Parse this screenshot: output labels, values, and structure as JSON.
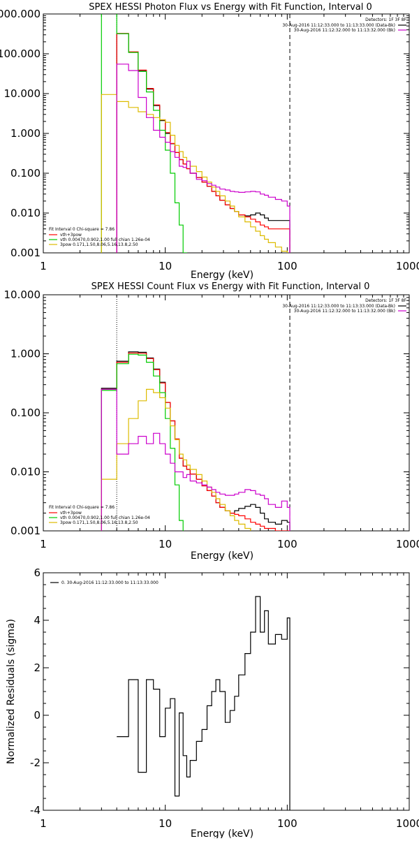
{
  "chart_data": [
    {
      "type": "line",
      "title": "SPEX HESSI Photon Flux vs Energy with Fit Function, Interval 0",
      "xlabel": "Energy (keV)",
      "ylabel": "",
      "xscale": "log",
      "yscale": "log",
      "xlim": [
        1,
        1000
      ],
      "ylim": [
        0.001,
        1000
      ],
      "xtick_labels": [
        "1",
        "10",
        "100",
        "1000"
      ],
      "ytick_values": [
        0.001,
        0.01,
        0.1,
        1,
        10,
        100,
        1000
      ],
      "ytick_labels": [
        "0.001",
        "0.010",
        "0.100",
        "1.000",
        "10.000",
        "100.000",
        "1000.000"
      ],
      "vlines": [
        {
          "x": 4.0,
          "style": "dotted",
          "color": "#000000"
        },
        {
          "x": 105,
          "style": "dashed",
          "color": "#000000"
        }
      ],
      "legend_right": {
        "header": "Detectors: 1F 3F 8F",
        "entries": [
          {
            "text": "30-Aug-2016 11:12:33.000 to 11:13:33.000 (Data-Bk)",
            "color": "#000000"
          },
          {
            "text": "30-Aug-2016 11:12:32.000 to 11:13:32.000 (Bk)",
            "color": "#cc00cc"
          }
        ]
      },
      "legend_left": {
        "header": "Fit Interval 0   Chi-square = 7.86",
        "entries": [
          {
            "text": "vth+3pow",
            "color": "#ff0000"
          },
          {
            "text": "vth 0.00470,0.902,1.00  full chian 1.26e-04",
            "color": "#00cc00"
          },
          {
            "text": "3pow 0.171,1.50,8.06,5.16,13.8,2.50",
            "color": "#ddbb00"
          }
        ]
      },
      "bin_edges": [
        3,
        4,
        5,
        6,
        7,
        8,
        9,
        10,
        11,
        12,
        13,
        14,
        15,
        16,
        18,
        20,
        22,
        24,
        26,
        28,
        31,
        34,
        37,
        40,
        45,
        50,
        55,
        60,
        65,
        70,
        80,
        90,
        100,
        105
      ],
      "series": [
        {
          "color": "#000000",
          "values": [
            null,
            320,
            110,
            38,
            13,
            5.0,
            2.1,
            1.0,
            0.55,
            0.33,
            0.22,
            0.17,
            0.13,
            0.1,
            0.078,
            0.06,
            0.047,
            0.035,
            0.027,
            0.021,
            0.016,
            0.013,
            0.011,
            0.009,
            0.0085,
            0.009,
            0.01,
            0.009,
            0.0075,
            0.0065,
            0.0065,
            0.0065,
            0.0065
          ]
        },
        {
          "color": "#ff0000",
          "values": [
            null,
            325,
            112,
            39,
            13.5,
            5.2,
            2.2,
            1.05,
            0.56,
            0.33,
            0.22,
            0.17,
            0.13,
            0.1,
            0.078,
            0.06,
            0.047,
            0.035,
            0.027,
            0.021,
            0.016,
            0.013,
            0.011,
            0.009,
            0.008,
            0.007,
            0.006,
            0.005,
            0.0045,
            0.004,
            0.004,
            0.004,
            0.004
          ]
        },
        {
          "color": "#00cc00",
          "values": [
            1000000.0,
            320,
            108,
            36,
            11,
            3.8,
            1.2,
            0.38,
            0.1,
            0.018,
            0.005,
            0.001,
            0.0005,
            null,
            null,
            null,
            null,
            null,
            null,
            null,
            null,
            null,
            null,
            null,
            null,
            null,
            null,
            null,
            null,
            null,
            null,
            null,
            null
          ]
        },
        {
          "color": "#ddbb00",
          "values": [
            9.5,
            6.3,
            4.5,
            3.5,
            3.0,
            2.5,
            2.2,
            1.9,
            0.9,
            0.5,
            0.35,
            0.25,
            0.2,
            0.15,
            0.11,
            0.08,
            0.06,
            0.045,
            0.035,
            0.027,
            0.02,
            0.015,
            0.011,
            0.008,
            0.006,
            0.0045,
            0.0035,
            0.0027,
            0.0022,
            0.0018,
            0.0014,
            0.0011,
            0.0009
          ]
        },
        {
          "color": "#cc00cc",
          "values": [
            null,
            55,
            38,
            8,
            2.5,
            1.2,
            0.8,
            0.6,
            0.35,
            0.25,
            0.15,
            0.14,
            0.2,
            0.1,
            0.07,
            0.065,
            0.055,
            0.05,
            0.045,
            0.04,
            0.038,
            0.035,
            0.034,
            0.033,
            0.034,
            0.035,
            0.034,
            0.03,
            0.028,
            0.025,
            0.022,
            0.02,
            0.015
          ]
        }
      ]
    },
    {
      "type": "line",
      "title": "SPEX HESSI Count Flux vs Energy with Fit Function, Interval 0",
      "xlabel": "Energy (keV)",
      "ylabel": "",
      "xscale": "log",
      "yscale": "log",
      "xlim": [
        1,
        1000
      ],
      "ylim": [
        0.001,
        10
      ],
      "xtick_labels": [
        "1",
        "10",
        "100",
        "1000"
      ],
      "ytick_values": [
        0.001,
        0.01,
        0.1,
        1,
        10
      ],
      "ytick_labels": [
        "0.001",
        "0.010",
        "0.100",
        "1.000",
        "10.000"
      ],
      "vlines": [
        {
          "x": 4.0,
          "style": "dotted",
          "color": "#000000"
        },
        {
          "x": 105,
          "style": "dashed",
          "color": "#000000"
        }
      ],
      "legend_right": {
        "header": "Detectors: 1F 3F 8F",
        "entries": [
          {
            "text": "30-Aug-2016 11:12:33.000 to 11:13:33.000 (Data-Bk)",
            "color": "#000000"
          },
          {
            "text": "30-Aug-2016 11:12:32.000 to 11:13:32.000 (Bk)",
            "color": "#cc00cc"
          }
        ]
      },
      "legend_left": {
        "header": "Fit Interval 0   Chi-square = 7.86",
        "entries": [
          {
            "text": "vth+3pow",
            "color": "#ff0000"
          },
          {
            "text": "vth 0.00470,0.902,1.00  full chian 1.26e-04",
            "color": "#00cc00"
          },
          {
            "text": "3pow 0.171,1.50,8.06,5.16,13.8,2.50",
            "color": "#ddbb00"
          }
        ]
      },
      "bin_edges": [
        3,
        4,
        5,
        6,
        7,
        8,
        9,
        10,
        11,
        12,
        13,
        14,
        15,
        16,
        18,
        20,
        22,
        24,
        26,
        28,
        31,
        34,
        37,
        40,
        45,
        50,
        55,
        60,
        65,
        70,
        80,
        90,
        100,
        105
      ],
      "series": [
        {
          "color": "#000000",
          "values": [
            0.26,
            0.75,
            1.08,
            1.06,
            0.85,
            0.55,
            0.33,
            0.15,
            0.073,
            0.036,
            0.017,
            0.0125,
            0.011,
            0.0092,
            0.0075,
            0.0058,
            0.0048,
            0.0039,
            0.003,
            0.0025,
            0.0022,
            0.002,
            0.0022,
            0.0024,
            0.0026,
            0.0028,
            0.0025,
            0.002,
            0.0016,
            0.0014,
            0.0013,
            0.0015,
            0.0014
          ]
        },
        {
          "color": "#ff0000",
          "values": [
            0.25,
            0.72,
            1.03,
            1.02,
            0.83,
            0.54,
            0.32,
            0.15,
            0.073,
            0.036,
            0.017,
            0.0125,
            0.011,
            0.0092,
            0.0075,
            0.0058,
            0.0048,
            0.0039,
            0.003,
            0.0025,
            0.0022,
            0.002,
            0.0019,
            0.0018,
            0.0016,
            0.0014,
            0.0013,
            0.0012,
            0.0011,
            0.0011,
            0.001,
            0.001,
            0.001
          ]
        },
        {
          "color": "#00cc00",
          "values": [
            0.24,
            0.68,
            0.98,
            0.95,
            0.72,
            0.42,
            0.22,
            0.08,
            0.025,
            0.006,
            0.0015,
            0.0005,
            null,
            null,
            null,
            null,
            null,
            null,
            null,
            null,
            null,
            null,
            null,
            null,
            null,
            null,
            null,
            null,
            null,
            null,
            null,
            null,
            null
          ]
        },
        {
          "color": "#ddbb00",
          "values": [
            0.0075,
            0.03,
            0.08,
            0.16,
            0.25,
            0.22,
            0.18,
            0.12,
            0.06,
            0.035,
            0.02,
            0.016,
            0.013,
            0.011,
            0.009,
            0.007,
            0.0055,
            0.0045,
            0.0035,
            0.0028,
            0.0022,
            0.0018,
            0.0015,
            0.0013,
            0.0011,
            0.0009,
            0.0007,
            null,
            null,
            null,
            null,
            null,
            null
          ]
        },
        {
          "color": "#cc00cc",
          "values": [
            0.25,
            0.02,
            0.03,
            0.04,
            0.03,
            0.045,
            0.03,
            0.02,
            0.014,
            0.01,
            0.01,
            0.008,
            0.009,
            0.007,
            0.0065,
            0.006,
            0.0055,
            0.005,
            0.0045,
            0.0042,
            0.004,
            0.004,
            0.0042,
            0.0045,
            0.005,
            0.0048,
            0.0042,
            0.004,
            0.0035,
            0.0028,
            0.0025,
            0.0032,
            0.0025
          ]
        }
      ]
    },
    {
      "type": "line",
      "title": "",
      "xlabel": "Energy (keV)",
      "ylabel": "Normalized Residuals (sigma)",
      "xscale": "log",
      "yscale": "linear",
      "xlim": [
        1,
        1000
      ],
      "ylim": [
        -4,
        6
      ],
      "xtick_labels": [
        "1",
        "10",
        "100",
        "1000"
      ],
      "ytick_values": [
        -4,
        -2,
        0,
        2,
        4,
        6
      ],
      "ytick_labels": [
        "-4",
        "-2",
        "0",
        "2",
        "4",
        "6"
      ],
      "legend": [
        {
          "text": "0. 30-Aug-2016 11:12:33.000 to 11:13:33.000",
          "color": "#000000"
        }
      ],
      "bin_edges": [
        4,
        5,
        6,
        7,
        8,
        9,
        10,
        11,
        12,
        13,
        14,
        15,
        16,
        18,
        20,
        22,
        24,
        26,
        28,
        31,
        34,
        37,
        40,
        45,
        50,
        55,
        60,
        65,
        70,
        80,
        90,
        100,
        105
      ],
      "series": [
        {
          "color": "#000000",
          "values": [
            -0.9,
            1.5,
            -2.4,
            1.5,
            1.1,
            -0.9,
            0.3,
            0.7,
            -3.4,
            0.1,
            -1.7,
            -2.6,
            -1.9,
            -1.1,
            -0.6,
            0.4,
            1.0,
            1.5,
            1.0,
            -0.3,
            0.2,
            0.8,
            1.7,
            2.6,
            3.5,
            5.0,
            3.5,
            4.4,
            3.0,
            3.4,
            3.2,
            4.1
          ]
        }
      ]
    }
  ]
}
